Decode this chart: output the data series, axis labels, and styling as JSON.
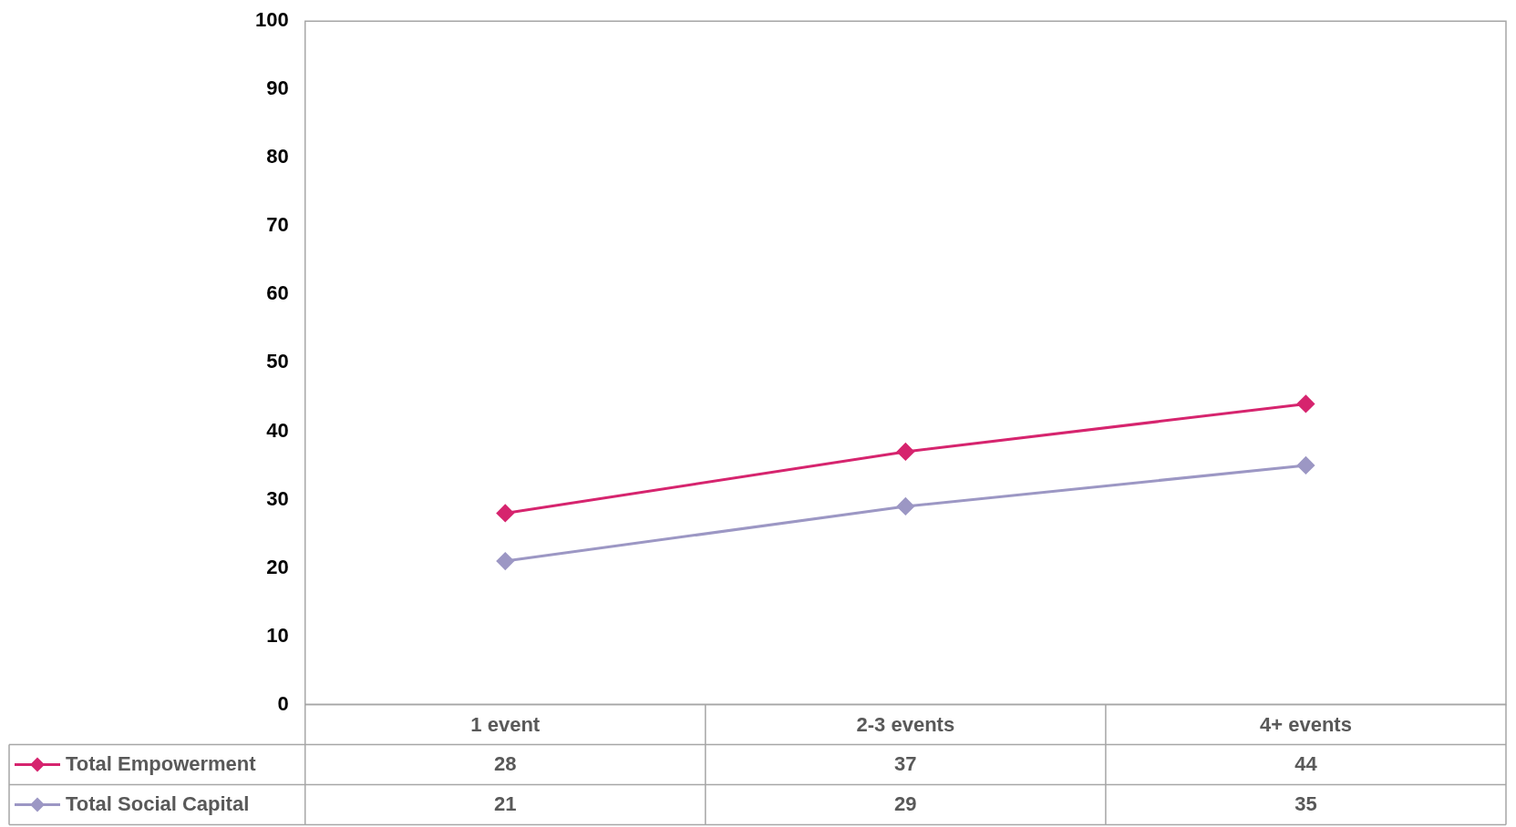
{
  "chart_data": {
    "type": "line",
    "categories": [
      "1 event",
      "2-3 events",
      "4+ events"
    ],
    "series": [
      {
        "name": "Total Empowerment",
        "color": "#d6246e",
        "values": [
          28,
          37,
          44
        ]
      },
      {
        "name": "Total Social Capital",
        "color": "#9c97c4",
        "values": [
          21,
          29,
          35
        ]
      }
    ],
    "ylim": [
      0,
      100
    ],
    "yticks": [
      0,
      10,
      20,
      30,
      40,
      50,
      60,
      70,
      80,
      90,
      100
    ],
    "grid": false,
    "legend": "bottom",
    "marker": "diamond",
    "line_style": "solid",
    "data_labels": true
  }
}
